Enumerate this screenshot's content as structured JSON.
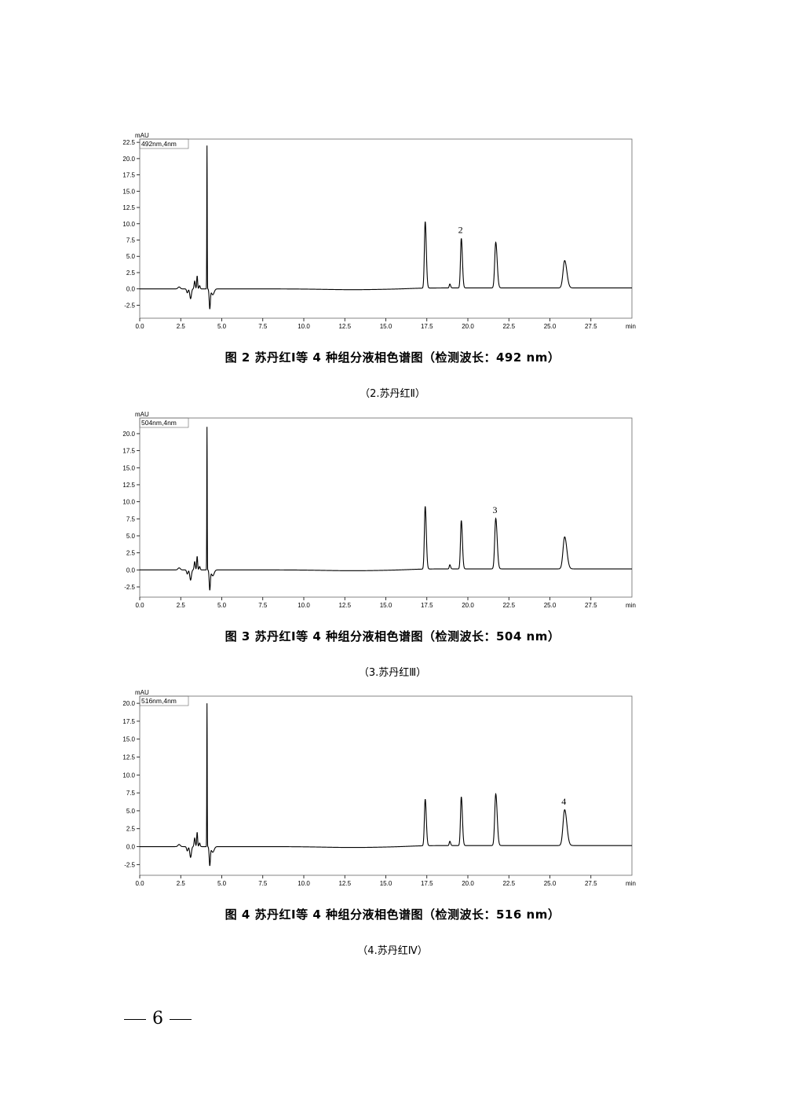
{
  "figures": [
    {
      "caption": "图 2 苏丹红Ⅰ等 4 种组分液相色谱图（检测波长：492 nm）",
      "subcaption": "（2.苏丹红Ⅱ）"
    },
    {
      "caption": "图 3 苏丹红Ⅰ等 4 种组分液相色谱图（检测波长：504 nm）",
      "subcaption": "（3.苏丹红Ⅲ）"
    },
    {
      "caption": "图 4 苏丹红Ⅰ等 4 种组分液相色谱图（检测波长：516 nm）",
      "subcaption": "（4.苏丹红Ⅳ）"
    }
  ],
  "page_number": "6",
  "chart_data": [
    {
      "type": "line",
      "channel_label": "492nm,4nm",
      "ylabel": "mAU",
      "xlabel": "min",
      "xlim": [
        0,
        30
      ],
      "ylim": [
        -4.5,
        23.0
      ],
      "x_ticks": [
        "0.0",
        "2.5",
        "5.0",
        "7.5",
        "10.0",
        "12.5",
        "15.0",
        "17.5",
        "20.0",
        "22.5",
        "25.0",
        "27.5"
      ],
      "y_ticks": [
        "22.5",
        "20.0",
        "17.5",
        "15.0",
        "12.5",
        "10.0",
        "7.5",
        "5.0",
        "2.5",
        "0.0",
        "-2.5"
      ],
      "peaks": [
        {
          "rt": 17.4,
          "height": 10.2,
          "width": 0.07
        },
        {
          "rt": 19.6,
          "height": 7.6,
          "width": 0.07
        },
        {
          "rt": 21.7,
          "height": 7.0,
          "width": 0.09
        },
        {
          "rt": 25.9,
          "height": 4.2,
          "width": 0.14
        },
        {
          "rt": 18.9,
          "height": 0.6,
          "width": 0.05
        }
      ],
      "peak_label": {
        "text": "2",
        "rt": 19.6,
        "height": 7.6
      },
      "solvent_front": {
        "rt": 4.1,
        "height": 22.0,
        "dip": -3.0
      }
    },
    {
      "type": "line",
      "channel_label": "504nm,4nm",
      "ylabel": "mAU",
      "xlabel": "min",
      "xlim": [
        0,
        30
      ],
      "ylim": [
        -4.0,
        22.3
      ],
      "x_ticks": [
        "0.0",
        "2.5",
        "5.0",
        "7.5",
        "10.0",
        "12.5",
        "15.0",
        "17.5",
        "20.0",
        "22.5",
        "25.0",
        "27.5"
      ],
      "y_ticks": [
        "20.0",
        "17.5",
        "15.0",
        "12.5",
        "10.0",
        "7.5",
        "5.0",
        "2.5",
        "0.0",
        "-2.5"
      ],
      "peaks": [
        {
          "rt": 17.4,
          "height": 9.2,
          "width": 0.07
        },
        {
          "rt": 19.6,
          "height": 7.1,
          "width": 0.07
        },
        {
          "rt": 21.7,
          "height": 7.4,
          "width": 0.09
        },
        {
          "rt": 25.9,
          "height": 4.7,
          "width": 0.14
        },
        {
          "rt": 18.9,
          "height": 0.6,
          "width": 0.05
        }
      ],
      "peak_label": {
        "text": "3",
        "rt": 21.7,
        "height": 7.4
      },
      "solvent_front": {
        "rt": 4.1,
        "height": 21.0,
        "dip": -2.9
      }
    },
    {
      "type": "line",
      "channel_label": "516nm,4nm",
      "ylabel": "mAU",
      "xlabel": "min",
      "xlim": [
        0,
        30
      ],
      "ylim": [
        -4.0,
        21.0
      ],
      "x_ticks": [
        "0.0",
        "2.5",
        "5.0",
        "7.5",
        "10.0",
        "12.5",
        "15.0",
        "17.5",
        "20.0",
        "22.5",
        "25.0",
        "27.5"
      ],
      "y_ticks": [
        "20.0",
        "17.5",
        "15.0",
        "12.5",
        "10.0",
        "7.5",
        "5.0",
        "2.5",
        "0.0",
        "-2.5"
      ],
      "peaks": [
        {
          "rt": 17.4,
          "height": 6.5,
          "width": 0.07
        },
        {
          "rt": 19.6,
          "height": 6.8,
          "width": 0.07
        },
        {
          "rt": 21.7,
          "height": 7.2,
          "width": 0.09
        },
        {
          "rt": 25.9,
          "height": 5.0,
          "width": 0.14
        },
        {
          "rt": 18.9,
          "height": 0.6,
          "width": 0.05
        }
      ],
      "peak_label": {
        "text": "4",
        "rt": 25.9,
        "height": 5.0
      },
      "solvent_front": {
        "rt": 4.1,
        "height": 20.0,
        "dip": -2.6
      }
    }
  ]
}
